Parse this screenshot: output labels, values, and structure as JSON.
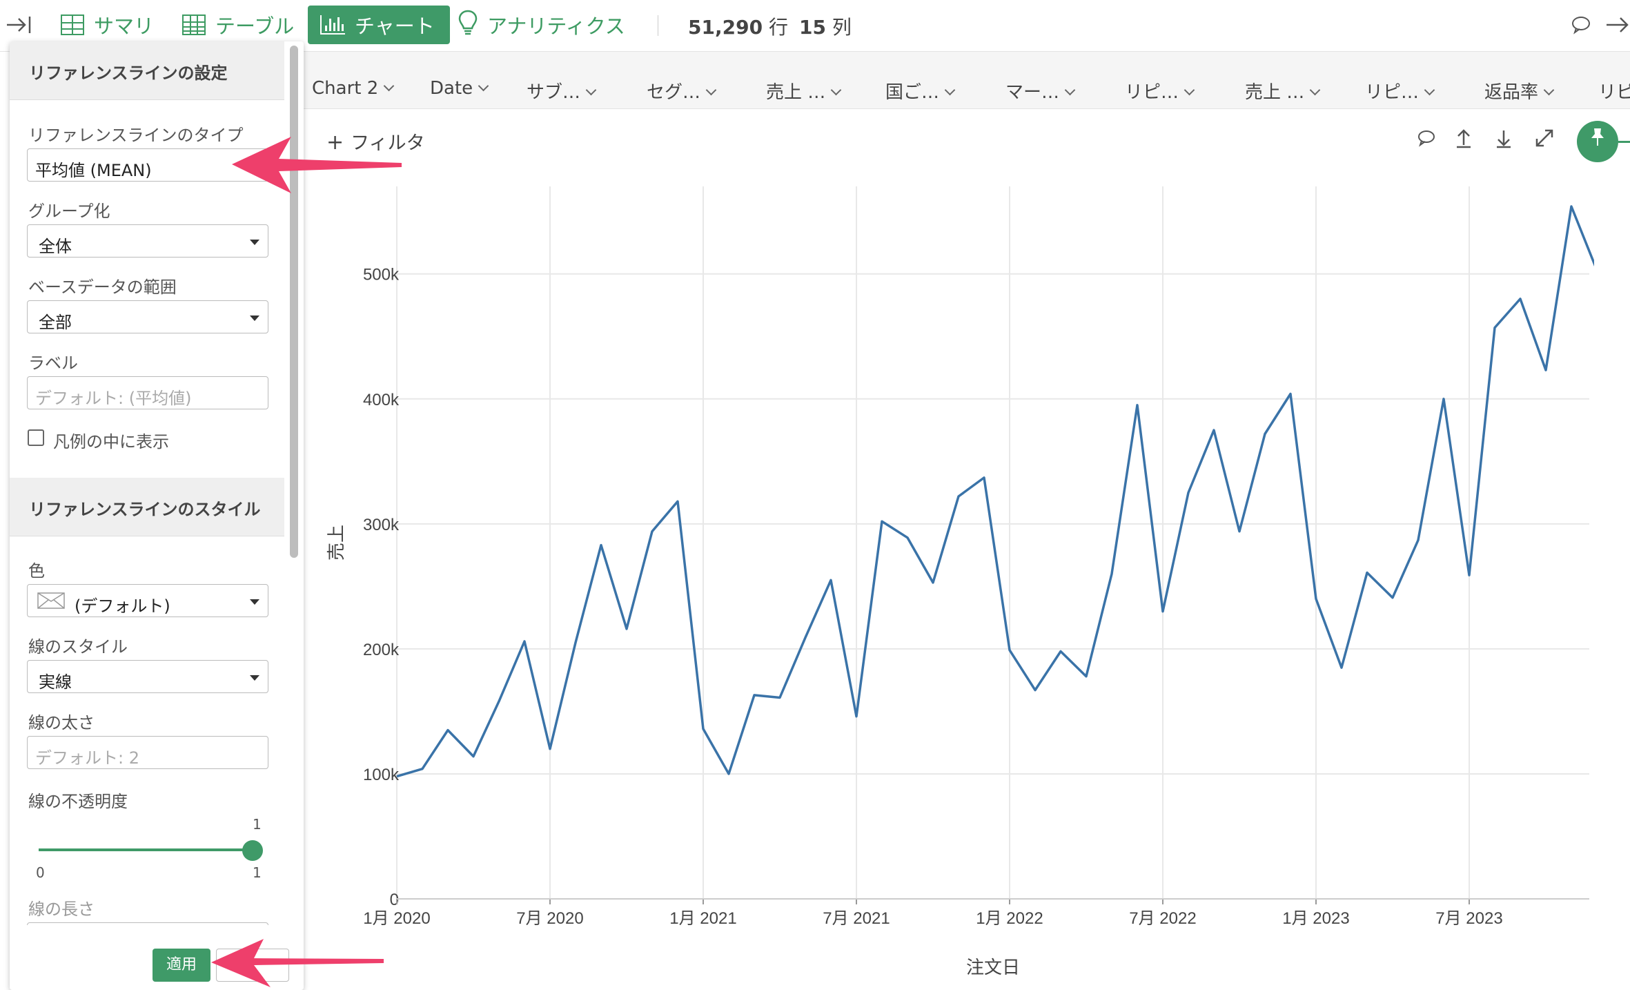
{
  "toolbar": {
    "tabs": [
      {
        "label": "サマリ"
      },
      {
        "label": "テーブル"
      },
      {
        "label": "チャート"
      },
      {
        "label": "アナリティクス"
      }
    ],
    "rows_value": "51,290",
    "rows_unit": "行",
    "cols_value": "15",
    "cols_unit": "列"
  },
  "column_tabs": [
    "Chart 2",
    "Date",
    "サブ…",
    "セグ…",
    "売上 …",
    "国ご…",
    "マー…",
    "リピ…",
    "売上 …",
    "リピ…",
    "返品率",
    "リピ"
  ],
  "chart_header": {
    "filter_label": "フィルタ"
  },
  "panel": {
    "section1_title": "リファレンスラインの設定",
    "type_label": "リファレンスラインのタイプ",
    "type_value": "平均値 (MEAN)",
    "group_label": "グループ化",
    "group_value": "全体",
    "range_label": "ベースデータの範囲",
    "range_value": "全部",
    "label_label": "ラベル",
    "label_placeholder": "デフォルト: (平均値)",
    "legend_checkbox_label": "凡例の中に表示",
    "section2_title": "リファレンスラインのスタイル",
    "color_label": "色",
    "color_value": "(デフォルト)",
    "line_style_label": "線のスタイル",
    "line_style_value": "実線",
    "line_width_label": "線の太さ",
    "line_width_placeholder": "デフォルト: 2",
    "opacity_label": "線の不透明度",
    "opacity_value": 1,
    "opacity_min": "0",
    "opacity_max": "1",
    "opacity_current": "1",
    "line_length_label": "線の長さ",
    "apply_label": "適用"
  },
  "colors": {
    "accent": "#3f9a68",
    "series": "#3a73a8",
    "arrow": "#ee3f6b"
  },
  "chart_data": {
    "type": "line",
    "title": "",
    "xlabel": "注文日",
    "ylabel": "売上",
    "x_tick_labels": [
      "1月 2020",
      "7月 2020",
      "1月 2021",
      "7月 2021",
      "1月 2022",
      "7月 2022",
      "1月 2023",
      "7月 2023"
    ],
    "y_tick_labels": [
      "0",
      "100k",
      "200k",
      "300k",
      "400k",
      "500k"
    ],
    "ylim": [
      0,
      570000
    ],
    "grid": true,
    "series": [
      {
        "x": [
          "2020-01",
          "2020-02",
          "2020-03",
          "2020-04",
          "2020-05",
          "2020-06",
          "2020-07",
          "2020-08",
          "2020-09",
          "2020-10",
          "2020-11",
          "2020-12",
          "2021-01",
          "2021-02",
          "2021-03",
          "2021-04",
          "2021-05",
          "2021-06",
          "2021-07",
          "2021-08",
          "2021-09",
          "2021-10",
          "2021-11",
          "2021-12",
          "2022-01",
          "2022-02",
          "2022-03",
          "2022-04",
          "2022-05",
          "2022-06",
          "2022-07",
          "2022-08",
          "2022-09",
          "2022-10",
          "2022-11",
          "2022-12",
          "2023-01",
          "2023-02",
          "2023-03",
          "2023-04",
          "2023-05",
          "2023-06",
          "2023-07",
          "2023-08",
          "2023-09",
          "2023-10",
          "2023-11",
          "2023-12"
        ],
        "values": [
          98000,
          104000,
          135000,
          114000,
          158000,
          206000,
          120000,
          205000,
          283000,
          216000,
          294000,
          318000,
          136000,
          100000,
          163000,
          161000,
          209000,
          255000,
          146000,
          302000,
          289000,
          253000,
          322000,
          337000,
          199000,
          167000,
          198000,
          178000,
          260000,
          395000,
          230000,
          325000,
          375000,
          294000,
          372000,
          404000,
          240000,
          185000,
          261000,
          241000,
          287000,
          400000,
          259000,
          457000,
          480000,
          423000,
          554000,
          503000
        ]
      }
    ]
  }
}
